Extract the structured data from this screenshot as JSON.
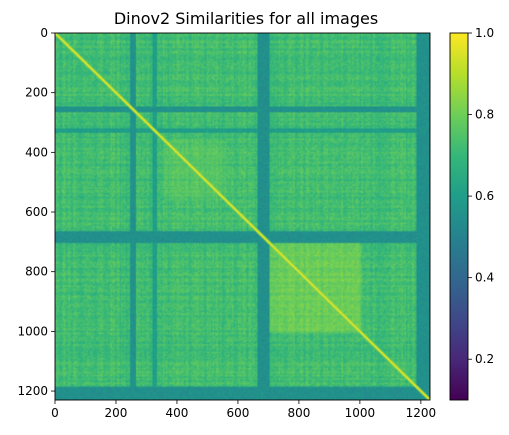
{
  "chart_data": {
    "type": "heatmap",
    "title": "Dinov2 Similarities for all images",
    "xlabel": "",
    "ylabel": "",
    "n": 1230,
    "xlim": [
      0,
      1230
    ],
    "ylim": [
      1230,
      0
    ],
    "x_ticks": [
      0,
      200,
      400,
      600,
      800,
      1000,
      1200
    ],
    "y_ticks": [
      0,
      200,
      400,
      600,
      800,
      1000,
      1200
    ],
    "x_tick_labels": [
      "0",
      "200",
      "400",
      "600",
      "800",
      "1000",
      "1200"
    ],
    "y_tick_labels": [
      "0",
      "200",
      "400",
      "600",
      "800",
      "1000",
      "1200"
    ],
    "diagonal_value": 1.0,
    "typical_range": [
      0.55,
      0.85
    ],
    "dark_bands": [
      {
        "start": 245,
        "end": 262,
        "level": 0.56
      },
      {
        "start": 318,
        "end": 332,
        "level": 0.6
      },
      {
        "start": 660,
        "end": 700,
        "level": 0.55
      },
      {
        "start": 1185,
        "end": 1230,
        "level": 0.55
      }
    ],
    "blocks": [
      {
        "start": 355,
        "end": 560,
        "level": 0.72
      },
      {
        "start": 700,
        "end": 1000,
        "level": 0.76
      }
    ],
    "colorbar": {
      "colormap": "viridis",
      "vmin": 0.1,
      "vmax": 1.0,
      "ticks": [
        0.2,
        0.4,
        0.6,
        0.8,
        1.0
      ],
      "tick_labels": [
        "0.2",
        "0.4",
        "0.6",
        "0.8",
        "1.0"
      ]
    },
    "grid": false
  }
}
